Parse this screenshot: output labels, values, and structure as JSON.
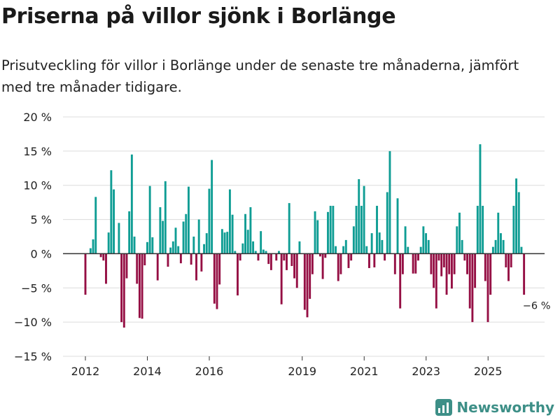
{
  "title": "Priserna på villor sjönk i Borlänge",
  "subtitle": "Prisutveckling för villor i Borlänge under de senaste tre månaderna, jämfört med tre månader tidigare.",
  "brand": {
    "name": "Newsworthy",
    "icon": "newsworthy-logo-icon"
  },
  "colors": {
    "positive": "#0f9d94",
    "negative": "#950f44",
    "grid": "#dcdcdc",
    "zero_line": "#333333",
    "text": "#222222",
    "brand": "#3d8f87"
  },
  "chart_data": {
    "type": "bar",
    "title": "Priserna på villor sjönk i Borlänge",
    "xlabel": "",
    "ylabel": "",
    "ylim": [
      -15,
      20
    ],
    "yticks": [
      20,
      15,
      10,
      5,
      0,
      -5,
      -10,
      -15
    ],
    "ytick_labels": [
      "20 %",
      "15 %",
      "10 %",
      "5 %",
      "0 %",
      "−5 %",
      "−10 %",
      "−15 %"
    ],
    "xticks": [
      2012,
      2014,
      2016,
      2019,
      2021,
      2023,
      2025
    ],
    "xtick_labels": [
      "2012",
      "2014",
      "2016",
      "2019",
      "2021",
      "2023",
      "2025"
    ],
    "x_start": 2012.0,
    "x_step": 0.0833,
    "grid": true,
    "unit": "%",
    "last_value_label": "−6 %",
    "values": [
      -6,
      0,
      0.8,
      2.1,
      8.3,
      0,
      -0.5,
      -1,
      -4.4,
      3.1,
      12.2,
      9.4,
      0,
      4.5,
      -10,
      -10.8,
      -3.6,
      6.2,
      14.5,
      2.5,
      -4.4,
      -9.4,
      -9.5,
      -1.7,
      1.7,
      9.9,
      2.4,
      0,
      -3.9,
      6.8,
      4.8,
      10.6,
      -1.9,
      0.9,
      1.8,
      3.8,
      1.1,
      -1.4,
      4.7,
      5.8,
      9.8,
      -1.6,
      2.5,
      -3.9,
      5,
      -2.6,
      1.4,
      3,
      9.5,
      13.7,
      -7.3,
      -8.1,
      -4.5,
      3.6,
      3.1,
      3.2,
      9.4,
      5.7,
      0.4,
      -6.1,
      -1,
      1.5,
      5.8,
      3.5,
      6.8,
      1.8,
      0.4,
      -1,
      3.3,
      0.6,
      0.4,
      -1.5,
      -2.4,
      0,
      -1,
      0.4,
      -7.4,
      -1,
      -2.4,
      7.4,
      -1.8,
      -3.6,
      -5,
      1.8,
      0,
      -8.2,
      -9.3,
      -6.6,
      -3,
      6.2,
      4.9,
      -0.4,
      -3.7,
      -0.6,
      6.1,
      7,
      7,
      1.1,
      -4,
      -3,
      1.1,
      2,
      -2.1,
      -1,
      4,
      7,
      10.9,
      7,
      9.9,
      1.1,
      -2.1,
      3,
      -2,
      7,
      3.1,
      2,
      -1,
      9,
      15,
      0,
      -3,
      8.1,
      -8,
      -3,
      4,
      1,
      0,
      -2.9,
      -2.9,
      -1,
      1,
      4,
      3,
      2,
      -3,
      -5,
      -8,
      -1,
      -3.3,
      -2,
      -6,
      -3,
      -5.1,
      -3,
      4,
      6,
      2,
      -1,
      -3,
      -8,
      -10,
      -5,
      7,
      16,
      7,
      -4,
      -10,
      -6,
      1,
      2,
      6,
      3,
      2,
      -2,
      -4,
      -2,
      7,
      11,
      9,
      1,
      -6
    ]
  }
}
